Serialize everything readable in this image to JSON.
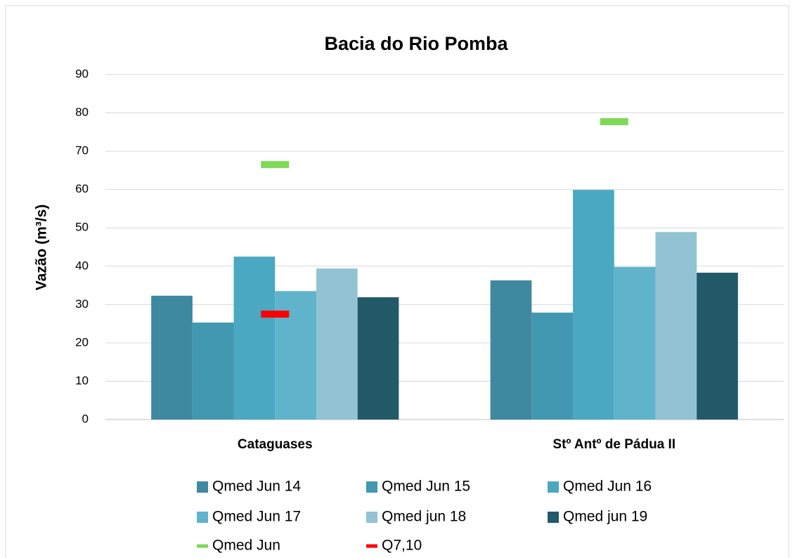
{
  "chart_data": {
    "type": "bar",
    "title": "Bacia do Rio Pomba",
    "y_label": "Vazão (m³/s)",
    "categories": [
      "Cataguases",
      "Stº Antº de Pádua II"
    ],
    "series": [
      {
        "name": "Qmed Jun 14",
        "color": "#3e88a0",
        "values": [
          32.3,
          36.3
        ]
      },
      {
        "name": "Qmed Jun 15",
        "color": "#4298b0",
        "values": [
          25.3,
          27.9
        ]
      },
      {
        "name": "Qmed Jun 16",
        "color": "#4aa8c2",
        "values": [
          42.5,
          59.9
        ]
      },
      {
        "name": "Qmed Jun 17",
        "color": "#5fb4cc",
        "values": [
          33.5,
          39.8
        ]
      },
      {
        "name": "Qmed jun 18",
        "color": "#92c3d4",
        "values": [
          39.4,
          48.9
        ]
      },
      {
        "name": "Qmed jun 19",
        "color": "#225a6a",
        "values": [
          31.9,
          38.3
        ]
      },
      {
        "name": "Qmed Jun",
        "color": "#7ed957",
        "style": "dash",
        "values": [
          66.5,
          77.7
        ]
      },
      {
        "name": "Q7,10",
        "color": "#ff0000",
        "style": "dash",
        "values": [
          27.5,
          null
        ]
      }
    ],
    "ylim": [
      0,
      90
    ],
    "yticks": [
      0,
      10,
      20,
      30,
      40,
      50,
      60,
      70,
      80,
      90
    ],
    "grid": true
  }
}
